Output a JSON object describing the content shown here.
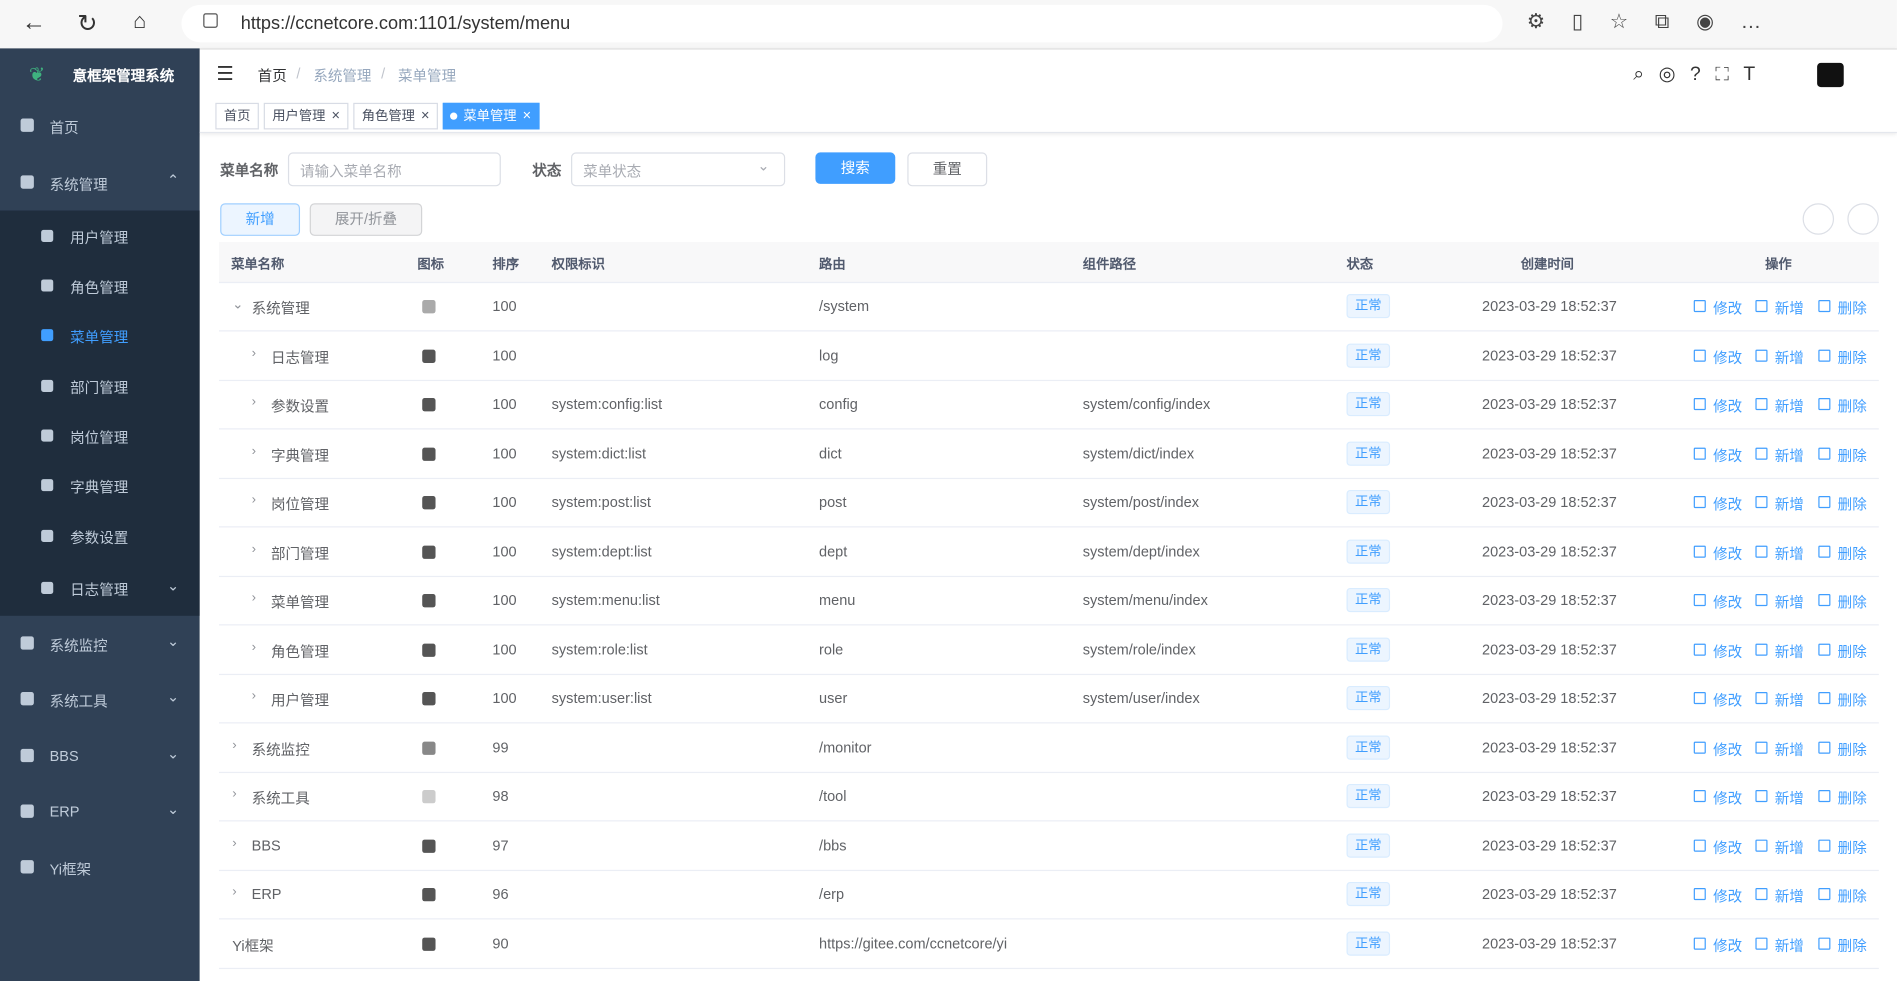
{
  "browser": {
    "url": "https://ccnetcore.com:1101/system/menu"
  },
  "sidebar": {
    "title": "意框架管理系统",
    "items": [
      {
        "label": "首页"
      },
      {
        "label": "系统管理",
        "children": [
          "用户管理",
          "角色管理",
          "菜单管理",
          "部门管理",
          "岗位管理",
          "字典管理",
          "参数设置",
          "日志管理"
        ]
      },
      {
        "label": "系统监控"
      },
      {
        "label": "系统工具"
      },
      {
        "label": "BBS"
      },
      {
        "label": "ERP"
      },
      {
        "label": "Yi框架"
      }
    ]
  },
  "breadcrumb": [
    "首页",
    "系统管理",
    "菜单管理"
  ],
  "tabs": [
    "首页",
    "用户管理",
    "角色管理",
    "菜单管理"
  ],
  "search": {
    "name_label": "菜单名称",
    "name_placeholder": "请输入菜单名称",
    "status_label": "状态",
    "status_placeholder": "菜单状态",
    "search_button": "搜索",
    "reset_button": "重置"
  },
  "toolbar": {
    "add": "新增",
    "expand": "展开/折叠"
  },
  "table": {
    "columns": [
      "菜单名称",
      "图标",
      "排序",
      "权限标识",
      "路由",
      "组件路径",
      "状态",
      "创建时间",
      "操作"
    ],
    "actions": [
      "修改",
      "新增",
      "删除"
    ],
    "rows": [
      {
        "name": "系统管理",
        "sort": 100,
        "route": "/system",
        "status": "正常",
        "created": "2023-03-29 18:52:37"
      },
      {
        "name": "日志管理",
        "sort": 100,
        "route": "log",
        "status": "正常",
        "created": "2023-03-29 18:52:37"
      },
      {
        "name": "参数设置",
        "sort": 100,
        "perms": "system:config:list",
        "route": "config",
        "component": "system/config/index",
        "status": "正常",
        "created": "2023-03-29 18:52:37"
      },
      {
        "name": "字典管理",
        "sort": 100,
        "perms": "system:dict:list",
        "route": "dict",
        "component": "system/dict/index",
        "status": "正常",
        "created": "2023-03-29 18:52:37"
      },
      {
        "name": "岗位管理",
        "sort": 100,
        "perms": "system:post:list",
        "route": "post",
        "component": "system/post/index",
        "status": "正常",
        "created": "2023-03-29 18:52:37"
      },
      {
        "name": "部门管理",
        "sort": 100,
        "perms": "system:dept:list",
        "route": "dept",
        "component": "system/dept/index",
        "status": "正常",
        "created": "2023-03-29 18:52:37"
      },
      {
        "name": "菜单管理",
        "sort": 100,
        "perms": "system:menu:list",
        "route": "menu",
        "component": "system/menu/index",
        "status": "正常",
        "created": "2023-03-29 18:52:37"
      },
      {
        "name": "角色管理",
        "sort": 100,
        "perms": "system:role:list",
        "route": "role",
        "component": "system/role/index",
        "status": "正常",
        "created": "2023-03-29 18:52:37"
      },
      {
        "name": "用户管理",
        "sort": 100,
        "perms": "system:user:list",
        "route": "user",
        "component": "system/user/index",
        "status": "正常",
        "created": "2023-03-29 18:52:37"
      },
      {
        "name": "系统监控",
        "sort": 99,
        "route": "/monitor",
        "status": "正常",
        "created": "2023-03-29 18:52:37"
      },
      {
        "name": "系统工具",
        "sort": 98,
        "route": "/tool",
        "status": "正常",
        "created": "2023-03-29 18:52:37"
      },
      {
        "name": "BBS",
        "sort": 97,
        "route": "/bbs",
        "status": "正常",
        "created": "2023-03-29 18:52:37"
      },
      {
        "name": "ERP",
        "sort": 96,
        "route": "/erp",
        "status": "正常",
        "created": "2023-03-29 18:52:37"
      },
      {
        "name": "Yi框架",
        "sort": 90,
        "route": "https://gitee.com/ccnetcore/yi",
        "status": "正常",
        "created": "2023-03-29 18:52:37"
      }
    ]
  }
}
